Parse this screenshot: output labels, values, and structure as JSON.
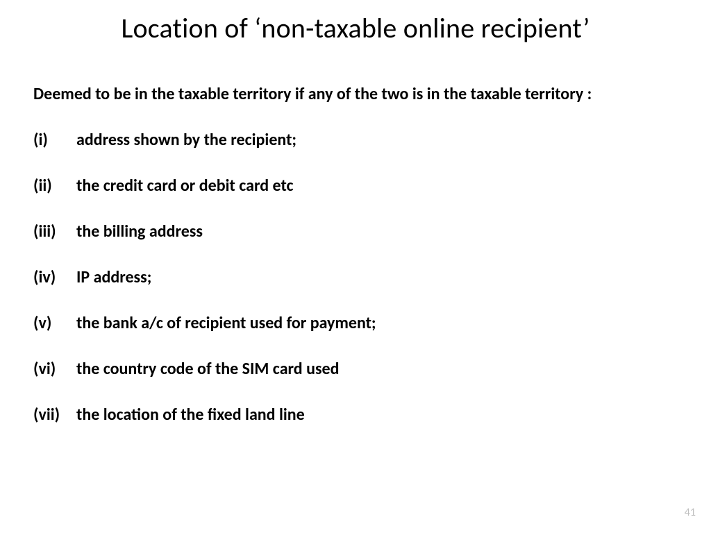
{
  "slide": {
    "title": "Location of ‘non-taxable online recipient’",
    "intro": "Deemed to be in the taxable territory if any  of the two is in the taxable territory :",
    "items": [
      {
        "num": "(i)",
        "text": "address shown by the recipient;"
      },
      {
        "num": "(ii)",
        "text": "the credit card or debit card etc"
      },
      {
        "num": "(iii)",
        "text": "the billing address"
      },
      {
        "num": "(iv)",
        "text": "IP address;"
      },
      {
        "num": "(v)",
        "text": "the bank  a/c of recipient used for payment;"
      },
      {
        "num": "(vi)",
        "text": "the country code of the SIM card used"
      },
      {
        "num": "(vii)",
        "text": "the location of the fixed land line"
      }
    ],
    "page_number": "41",
    "style": {
      "background_color": "#ffffff",
      "title_fontsize": 40,
      "title_color": "#000000",
      "title_weight": 400,
      "body_fontsize": 24,
      "body_color": "#000000",
      "body_weight": 700,
      "page_num_color": "#bfbfbf",
      "page_num_fontsize": 16,
      "font_family": "Calibri"
    }
  }
}
